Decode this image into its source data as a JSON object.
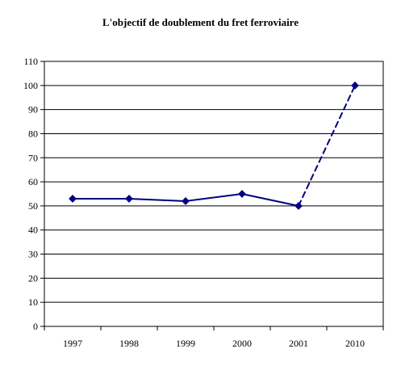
{
  "chart_data": {
    "type": "line",
    "title": "L'objectif de doublement du fret ferroviaire",
    "xlabel": "",
    "ylabel": "",
    "categories": [
      "1997",
      "1998",
      "1999",
      "2000",
      "2001",
      "2010"
    ],
    "series": [
      {
        "values": [
          53,
          53,
          52,
          55,
          50,
          100
        ],
        "color": "#000080",
        "note_segment_style": [
          "solid",
          "solid",
          "solid",
          "solid",
          "dashed"
        ]
      }
    ],
    "ylim": [
      0,
      110
    ],
    "yticks": [
      "0",
      "10",
      "20",
      "30",
      "40",
      "50",
      "60",
      "70",
      "80",
      "90",
      "100",
      "110"
    ],
    "grid": true,
    "legend": "none",
    "marker": "diamond"
  }
}
